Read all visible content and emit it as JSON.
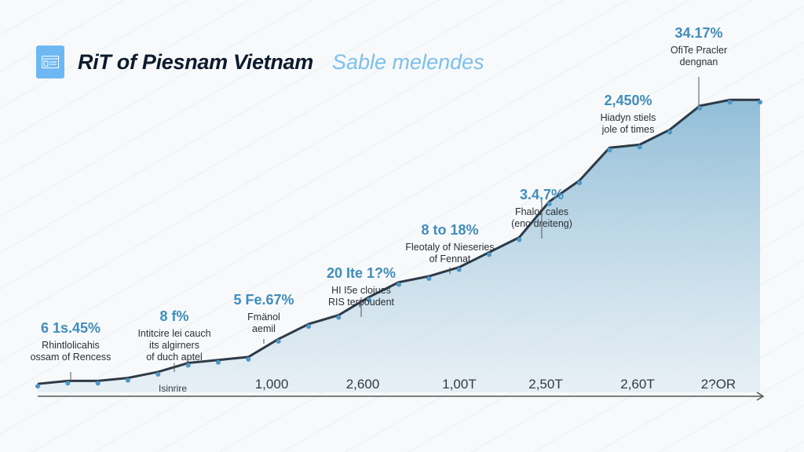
{
  "header": {
    "title": "RiT of Piesnam Vietnam",
    "subtitle": "Sable melendes",
    "icon": "document-card-icon"
  },
  "colors": {
    "line": "#2d3a48",
    "fill": "#8fc0dc",
    "accent": "#3f8dbd",
    "subtitle": "#7cc0ec"
  },
  "chart_data": {
    "type": "area",
    "title": "RiT of Piesnam Vietnam",
    "subtitle": "Sable melendes",
    "x_tick_labels": [
      "Isinrire",
      "1,000",
      "2,600",
      "1,00T",
      "2,50T",
      "2,60T",
      "2?OR"
    ],
    "values": [
      1,
      2,
      2,
      3,
      5,
      8,
      9,
      10,
      16,
      21,
      24,
      30,
      35,
      37,
      40,
      45,
      50,
      62,
      69,
      80,
      81,
      86,
      94,
      96,
      96
    ],
    "ylim": [
      0,
      100
    ],
    "grid": false,
    "annotations": [
      {
        "value": "6 1s.45%",
        "text": [
          "Rhintlolicahis",
          "ossam of Rencess"
        ]
      },
      {
        "value": "8 f%",
        "text": [
          "Intitcire lei cauch",
          "its algirners",
          "of duch aptel"
        ]
      },
      {
        "value": "5 Fe.67%",
        "text": [
          "Fmänol",
          "aemil"
        ]
      },
      {
        "value": "20 Ite 1?%",
        "text": [
          "HI I5e clojues",
          "RIS terpoudent"
        ]
      },
      {
        "value": "8 to 18%",
        "text": [
          "Fleotaly of Nieseries",
          "of Fennat"
        ]
      },
      {
        "value": "3.4,7%",
        "text": [
          "Fhalor cales",
          "(eno dreiteng)"
        ]
      },
      {
        "value": "2,450%",
        "text": [
          "Hiadyn stiels",
          "jole of times"
        ]
      },
      {
        "value": "34.17%",
        "text": [
          "OfiTe Pracler",
          "dengnan"
        ]
      }
    ]
  }
}
